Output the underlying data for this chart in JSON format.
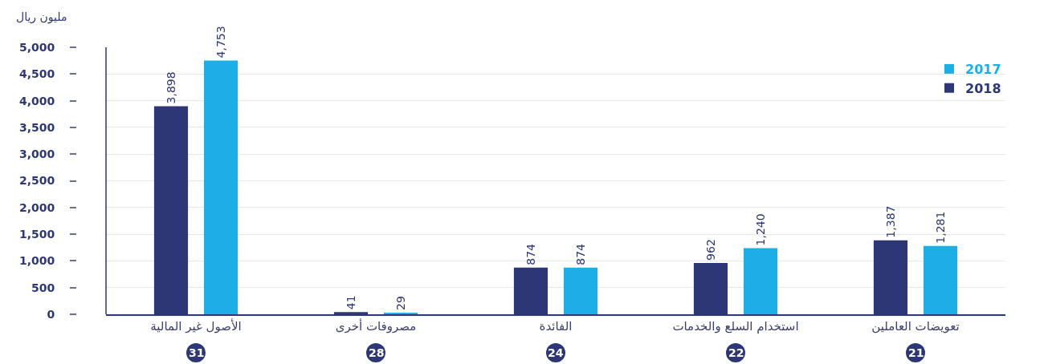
{
  "chart_data": {
    "type": "bar",
    "ylabel": "مليون ريال",
    "categories": [
      "الأصول غير المالية",
      "مصروفات أخرى",
      "الفائدة",
      "استخدام السلع والخدمات",
      "تعويضات العاملين"
    ],
    "series": [
      {
        "name": "2018",
        "color": "#2e3775",
        "values": [
          3898,
          41,
          874,
          962,
          1387
        ],
        "value_labels": [
          "3,898",
          "41",
          "874",
          "962",
          "1,387"
        ]
      },
      {
        "name": "2017",
        "color": "#1daee6",
        "values": [
          4753,
          29,
          874,
          1240,
          1281
        ],
        "value_labels": [
          "4,753",
          "29",
          "874",
          "1,240",
          "1,281"
        ]
      }
    ],
    "ylim": [
      0,
      5000
    ],
    "yticks": [
      0,
      500,
      {
        "value": 1000,
        "label": "1,000"
      },
      {
        "value": 1500,
        "label": "1,500"
      },
      {
        "value": 2000,
        "label": "2,000"
      },
      {
        "value": 2500,
        "label": "2,500"
      },
      {
        "value": 3000,
        "label": "3,000"
      },
      {
        "value": 3500,
        "label": "3,500"
      },
      {
        "value": 4000,
        "label": "4,000"
      },
      {
        "value": 4500,
        "label": "4,500"
      },
      {
        "value": 5000,
        "label": "5,000"
      }
    ],
    "annotations": [
      "31",
      "28",
      "24",
      "22",
      "21"
    ],
    "grid": "y",
    "legend": "top right"
  }
}
